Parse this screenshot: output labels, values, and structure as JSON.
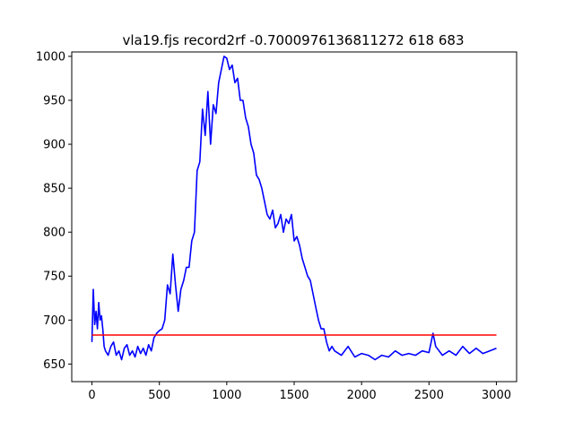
{
  "chart_data": {
    "type": "line",
    "title": "vla19.fjs record2rf -0.7000976136811272 618 683",
    "xlabel": "",
    "ylabel": "",
    "xlim": [
      -150,
      3150
    ],
    "ylim": [
      630,
      1005
    ],
    "grid": false,
    "xticks": [
      0,
      500,
      1000,
      1500,
      2000,
      2500,
      3000
    ],
    "yticks": [
      650,
      700,
      750,
      800,
      850,
      900,
      950,
      1000
    ],
    "series": [
      {
        "color": "#0000ff",
        "x": [
          0,
          10,
          20,
          30,
          40,
          50,
          60,
          70,
          80,
          90,
          100,
          120,
          140,
          160,
          180,
          200,
          220,
          240,
          260,
          280,
          300,
          320,
          340,
          360,
          380,
          400,
          420,
          440,
          460,
          480,
          500,
          520,
          540,
          560,
          580,
          600,
          620,
          640,
          660,
          680,
          700,
          720,
          740,
          760,
          780,
          800,
          820,
          840,
          860,
          880,
          900,
          920,
          940,
          960,
          980,
          1000,
          1020,
          1040,
          1060,
          1080,
          1100,
          1120,
          1140,
          1160,
          1180,
          1200,
          1220,
          1240,
          1260,
          1280,
          1300,
          1320,
          1340,
          1360,
          1380,
          1400,
          1420,
          1440,
          1460,
          1480,
          1500,
          1520,
          1540,
          1560,
          1580,
          1600,
          1620,
          1640,
          1660,
          1680,
          1700,
          1720,
          1740,
          1760,
          1780,
          1800,
          1850,
          1900,
          1950,
          2000,
          2050,
          2100,
          2150,
          2200,
          2250,
          2300,
          2350,
          2400,
          2450,
          2500,
          2530,
          2550,
          2600,
          2650,
          2700,
          2750,
          2800,
          2850,
          2900,
          2950,
          3000
        ],
        "y": [
          675,
          735,
          695,
          710,
          690,
          720,
          700,
          705,
          690,
          670,
          665,
          660,
          670,
          675,
          660,
          665,
          655,
          668,
          672,
          660,
          665,
          658,
          670,
          662,
          668,
          660,
          672,
          665,
          680,
          685,
          688,
          690,
          700,
          740,
          730,
          775,
          740,
          710,
          735,
          745,
          760,
          760,
          790,
          800,
          870,
          880,
          940,
          910,
          960,
          900,
          945,
          935,
          970,
          985,
          1000,
          998,
          985,
          990,
          970,
          975,
          950,
          950,
          930,
          920,
          900,
          890,
          865,
          860,
          850,
          835,
          820,
          815,
          825,
          805,
          810,
          820,
          800,
          815,
          810,
          820,
          790,
          795,
          785,
          770,
          760,
          750,
          745,
          730,
          715,
          700,
          690,
          690,
          675,
          665,
          670,
          665,
          660,
          670,
          658,
          662,
          660,
          655,
          660,
          658,
          665,
          660,
          662,
          660,
          665,
          663,
          685,
          670,
          660,
          665,
          660,
          670,
          662,
          668,
          662,
          665,
          668
        ]
      },
      {
        "color": "#ff0000",
        "x": [
          0,
          3000
        ],
        "y": [
          683,
          683
        ]
      }
    ]
  }
}
